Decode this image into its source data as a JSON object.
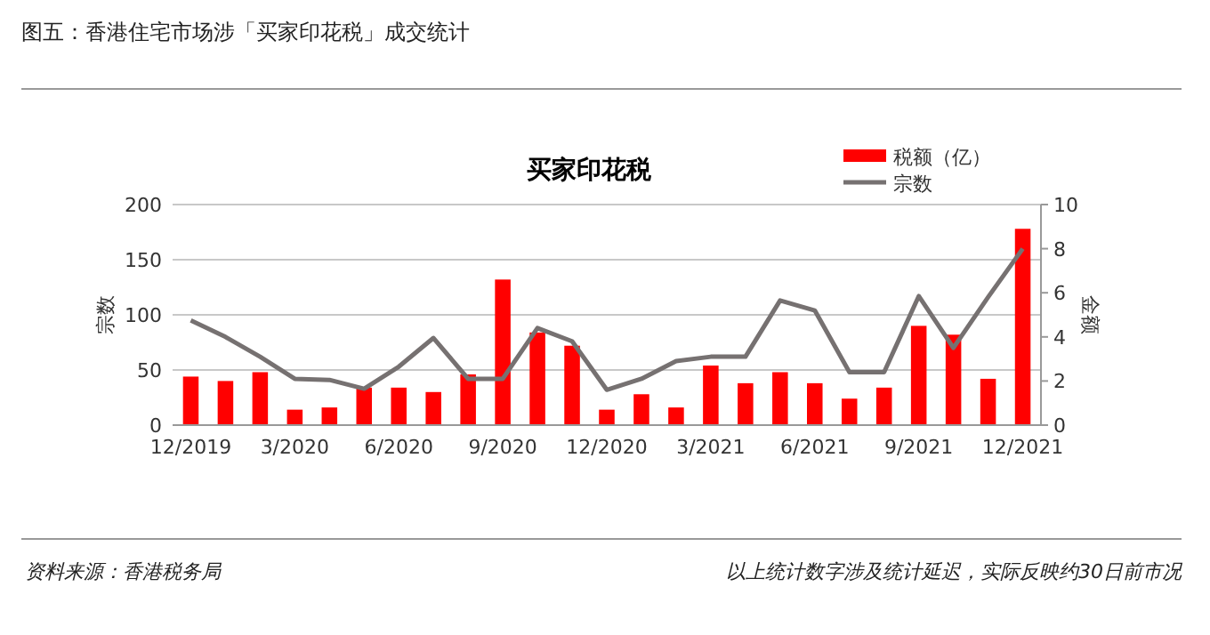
{
  "chart_data": {
    "type": "bar",
    "title": "图五：香港住宅市场涉「买家印花税」成交统计",
    "subtitle": "买家印花税",
    "ylabel": "宗数",
    "y2label": "金额",
    "categories": [
      "12/2019",
      null,
      null,
      "3/2020",
      null,
      null,
      "6/2020",
      null,
      null,
      "9/2020",
      null,
      null,
      "12/2020",
      null,
      null,
      "3/2021",
      null,
      null,
      "6/2021",
      null,
      null,
      "9/2021",
      null,
      null,
      "12/2021"
    ],
    "series": [
      {
        "name": "税额（亿）",
        "axis": "y2",
        "color": "#ff0000",
        "values": [
          2.2,
          2.0,
          2.4,
          0.7,
          0.8,
          1.7,
          1.7,
          1.5,
          2.3,
          6.6,
          4.2,
          3.6,
          0.7,
          1.4,
          0.8,
          2.7,
          1.9,
          2.4,
          1.9,
          1.2,
          1.7,
          4.5,
          4.1,
          2.1,
          8.9
        ]
      },
      {
        "name": "宗数",
        "type": "line",
        "axis": "y",
        "color": "#767171",
        "values": [
          95,
          80,
          62,
          42,
          41,
          33,
          53,
          79,
          42,
          42,
          88,
          76,
          32,
          42,
          58,
          62,
          62,
          113,
          104,
          48,
          48,
          117,
          70,
          116,
          160
        ]
      }
    ],
    "ylim": [
      0,
      200
    ],
    "yticks": [
      0,
      50,
      100,
      150,
      200
    ],
    "y2lim": [
      0,
      10
    ],
    "y2ticks": [
      0,
      2,
      4,
      6,
      8,
      10
    ],
    "grid": "y",
    "legend": "top right",
    "marker": "none",
    "line_style": "solid",
    "annotations": [
      "资料来源：香港税务局",
      "以上统计数字涉及统计延迟，实际反映约30日前市况"
    ]
  }
}
